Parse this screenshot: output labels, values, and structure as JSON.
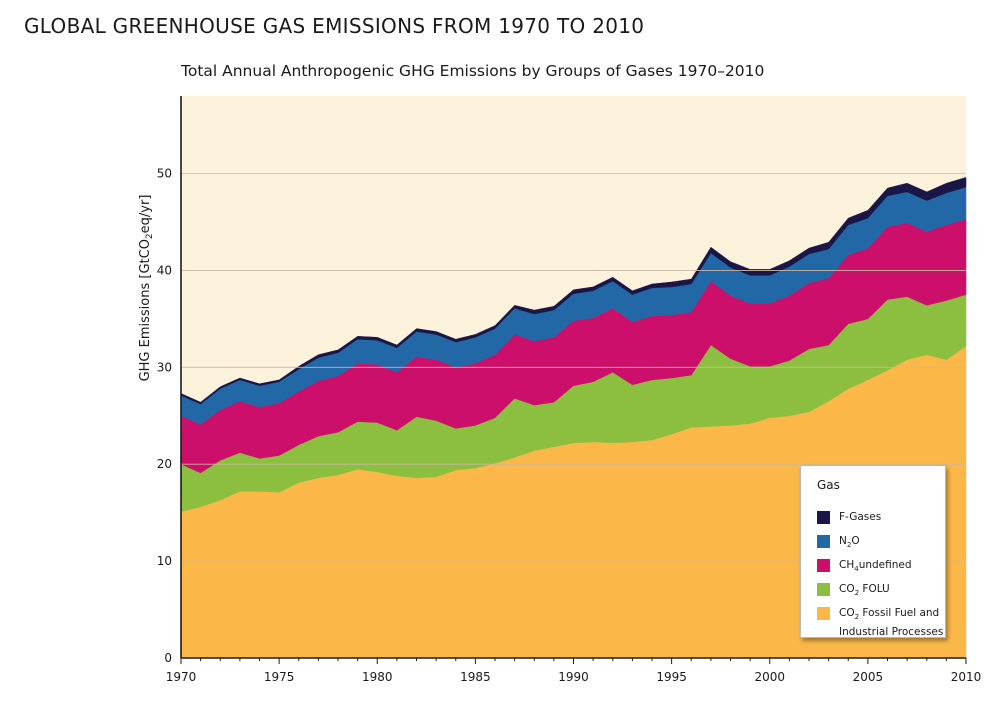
{
  "page": {
    "title": "GLOBAL GREENHOUSE GAS EMISSIONS FROM 1970 TO 2010"
  },
  "chart_data": {
    "type": "area",
    "stacked": true,
    "title": "Total Annual Anthropogenic GHG Emissions by Groups of Gases 1970–2010",
    "xlabel": "",
    "ylabel": "GHG Emissions [GtCO₂eq/yr]",
    "ylabel_parts": {
      "pre": "GHG Emissions [GtCO",
      "sub": "2",
      "post": "eq/yr]"
    },
    "xlim": [
      1970,
      2010
    ],
    "ylim": [
      0,
      58
    ],
    "yticks": [
      0,
      10,
      20,
      30,
      40,
      50
    ],
    "xticks": [
      1970,
      1975,
      1980,
      1985,
      1990,
      1995,
      2000,
      2005,
      2010
    ],
    "grid": "horizontal",
    "legend_position": "bottom-right",
    "legend_title": "Gas",
    "x": [
      1970,
      1971,
      1972,
      1973,
      1974,
      1975,
      1976,
      1977,
      1978,
      1979,
      1980,
      1981,
      1982,
      1983,
      1984,
      1985,
      1986,
      1987,
      1988,
      1989,
      1990,
      1991,
      1992,
      1993,
      1994,
      1995,
      1996,
      1997,
      1998,
      1999,
      2000,
      2001,
      2002,
      2003,
      2004,
      2005,
      2006,
      2007,
      2008,
      2009,
      2010
    ],
    "series": [
      {
        "name": "CO2 Fossil Fuel and Industrial Processes",
        "legend_parts": [
          "CO",
          "2",
          " Fossil Fuel and",
          "Industrial Processes"
        ],
        "color": "#fbb848",
        "values": [
          15.1,
          15.6,
          16.3,
          17.2,
          17.2,
          17.1,
          18.1,
          18.6,
          18.9,
          19.5,
          19.2,
          18.8,
          18.6,
          18.7,
          19.4,
          19.6,
          20.1,
          20.7,
          21.4,
          21.8,
          22.2,
          22.3,
          22.2,
          22.3,
          22.5,
          23.1,
          23.8,
          23.9,
          24.0,
          24.2,
          24.8,
          25.0,
          25.4,
          26.5,
          27.8,
          28.7,
          29.7,
          30.8,
          31.3,
          30.8,
          32.2
        ]
      },
      {
        "name": "CO2 FOLU",
        "legend_parts": [
          "CO",
          "2",
          " FOLU"
        ],
        "color": "#8cbe3f",
        "values": [
          4.9,
          3.5,
          4.1,
          4.0,
          3.4,
          3.8,
          3.9,
          4.3,
          4.4,
          4.9,
          5.1,
          4.7,
          6.3,
          5.8,
          4.3,
          4.4,
          4.7,
          6.1,
          4.7,
          4.6,
          5.9,
          6.2,
          7.3,
          5.9,
          6.2,
          5.8,
          5.4,
          8.4,
          6.9,
          5.9,
          5.3,
          5.7,
          6.5,
          5.8,
          6.7,
          6.3,
          7.3,
          6.5,
          5.1,
          6.1,
          5.3
        ]
      },
      {
        "name": "CH4",
        "legend_parts": [
          "CH",
          "4"
        ],
        "color": "#cb0f6a",
        "values": [
          5.0,
          5.0,
          5.2,
          5.3,
          5.3,
          5.4,
          5.5,
          5.7,
          5.8,
          6.0,
          6.0,
          6.0,
          6.2,
          6.3,
          6.3,
          6.4,
          6.5,
          6.6,
          6.6,
          6.7,
          6.7,
          6.6,
          6.6,
          6.5,
          6.6,
          6.5,
          6.5,
          6.6,
          6.5,
          6.5,
          6.5,
          6.7,
          6.8,
          6.9,
          7.1,
          7.3,
          7.5,
          7.6,
          7.6,
          7.8,
          7.8
        ]
      },
      {
        "name": "N2O",
        "legend_parts": [
          "N",
          "2",
          "O"
        ],
        "color": "#2268a6",
        "values": [
          2.1,
          2.1,
          2.2,
          2.2,
          2.2,
          2.2,
          2.3,
          2.4,
          2.4,
          2.5,
          2.5,
          2.5,
          2.6,
          2.6,
          2.6,
          2.7,
          2.7,
          2.7,
          2.8,
          2.8,
          2.8,
          2.8,
          2.8,
          2.8,
          2.9,
          2.9,
          2.9,
          2.9,
          2.9,
          2.9,
          2.9,
          3.0,
          3.0,
          3.0,
          3.1,
          3.1,
          3.2,
          3.2,
          3.2,
          3.3,
          3.3
        ]
      },
      {
        "name": "F-Gases",
        "legend_parts": [
          "F-Gases"
        ],
        "color": "#1a1748",
        "values": [
          0.2,
          0.2,
          0.2,
          0.2,
          0.2,
          0.2,
          0.3,
          0.3,
          0.3,
          0.3,
          0.3,
          0.3,
          0.3,
          0.3,
          0.3,
          0.3,
          0.3,
          0.3,
          0.4,
          0.4,
          0.4,
          0.4,
          0.4,
          0.4,
          0.4,
          0.5,
          0.5,
          0.6,
          0.6,
          0.6,
          0.6,
          0.6,
          0.6,
          0.7,
          0.7,
          0.8,
          0.8,
          0.9,
          0.9,
          1.0,
          1.0
        ]
      }
    ]
  },
  "colors": {
    "plot_background": "#fdf2dc",
    "grid": "#c8b8a5"
  }
}
